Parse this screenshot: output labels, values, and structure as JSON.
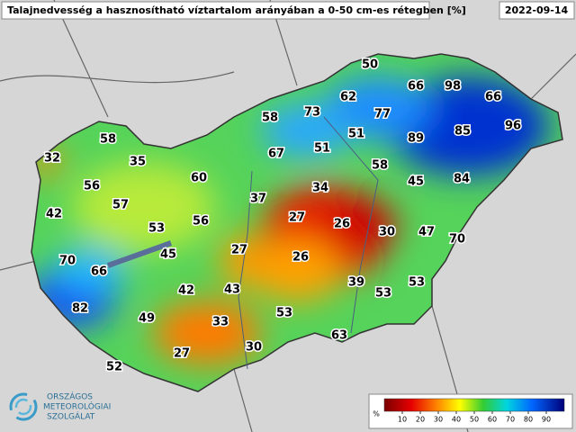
{
  "header": {
    "title": "Talajnedvesség a hasznosítható víztartalom arányában a 0-50 cm-es rétegben [%]",
    "date": "2022-09-14"
  },
  "stations": [
    50,
    62,
    66,
    98,
    66,
    58,
    73,
    77,
    51,
    51,
    89,
    85,
    96,
    58,
    32,
    35,
    67,
    60,
    58,
    45,
    84,
    56,
    37,
    34,
    27,
    26,
    42,
    57,
    53,
    56,
    30,
    47,
    70,
    70,
    45,
    27,
    26,
    66,
    82,
    42,
    43,
    39,
    53,
    53,
    49,
    33,
    53,
    63,
    27,
    30,
    52
  ],
  "legend": {
    "unit": "%",
    "ticks": [
      10,
      20,
      30,
      40,
      50,
      60,
      70,
      80,
      90
    ]
  },
  "logo": {
    "lines": [
      "ORSZÁGOS",
      "METEOROLÓGIAI",
      "SZOLGÁLAT"
    ]
  }
}
